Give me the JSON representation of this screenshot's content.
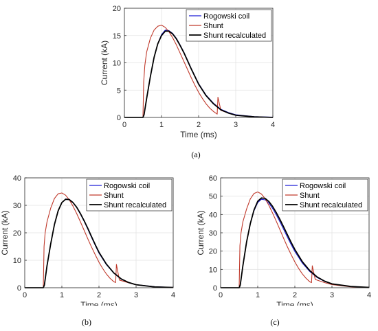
{
  "chart_data": [
    {
      "type": "line",
      "panel_label": "(a)",
      "xlabel": "Time (ms)",
      "ylabel": "Current (kA)",
      "xlim": [
        0,
        4
      ],
      "ylim": [
        0,
        20
      ],
      "xticks": [
        0,
        1,
        2,
        3,
        4
      ],
      "yticks": [
        0,
        5,
        10,
        15,
        20
      ],
      "grid": true,
      "legend_position": "top-right",
      "colors": {
        "Rogowski coil": "#1f1fd6",
        "Shunt": "#c0392b",
        "Shunt recalculated": "#000000"
      },
      "series": [
        {
          "name": "Rogowski coil",
          "color": "#1f1fd6",
          "x": [
            0,
            0.5,
            0.53,
            0.6,
            0.7,
            0.8,
            0.9,
            1.0,
            1.1,
            1.2,
            1.3,
            1.4,
            1.5,
            1.6,
            1.7,
            1.8,
            1.9,
            2.0,
            2.2,
            2.4,
            2.6,
            2.8,
            3.0,
            3.5,
            4.0
          ],
          "y": [
            0,
            0,
            0.5,
            3.5,
            7.5,
            11,
            13.5,
            15.2,
            16.0,
            15.9,
            15.4,
            14.5,
            13.3,
            12.0,
            10.5,
            9.0,
            7.6,
            6.2,
            4.1,
            2.6,
            1.5,
            0.9,
            0.5,
            0.15,
            0.05
          ]
        },
        {
          "name": "Shunt",
          "color": "#c0392b",
          "x": [
            0,
            0.5,
            0.52,
            0.55,
            0.6,
            0.7,
            0.8,
            0.9,
            1.0,
            1.1,
            1.2,
            1.3,
            1.4,
            1.5,
            1.6,
            1.7,
            1.8,
            1.9,
            2.0,
            2.1,
            2.2,
            2.3,
            2.4,
            2.5,
            2.52,
            2.6,
            2.8,
            3.0,
            3.5,
            4.0
          ],
          "y": [
            0,
            0,
            6.5,
            9.5,
            12.0,
            14.5,
            16.0,
            16.7,
            16.9,
            16.5,
            15.7,
            14.6,
            13.3,
            11.8,
            10.3,
            8.8,
            7.3,
            5.9,
            4.6,
            3.5,
            2.5,
            1.7,
            1.1,
            0.6,
            3.7,
            1.3,
            0.8,
            0.4,
            0.1,
            0.0
          ]
        },
        {
          "name": "Shunt recalculated",
          "color": "#000000",
          "x": [
            0,
            0.5,
            0.53,
            0.6,
            0.7,
            0.8,
            0.9,
            1.0,
            1.1,
            1.2,
            1.3,
            1.4,
            1.5,
            1.6,
            1.7,
            1.8,
            1.9,
            2.0,
            2.2,
            2.4,
            2.6,
            2.8,
            3.0,
            3.5,
            4.0
          ],
          "y": [
            0,
            0,
            0.5,
            3.5,
            7.5,
            11,
            13.5,
            15.0,
            15.8,
            15.8,
            15.3,
            14.4,
            13.2,
            11.9,
            10.4,
            8.9,
            7.5,
            6.1,
            4.0,
            2.5,
            1.4,
            0.8,
            0.4,
            0.1,
            0.0
          ]
        }
      ]
    },
    {
      "type": "line",
      "panel_label": "(b)",
      "xlabel": "Time (ms)",
      "ylabel": "Current (kA)",
      "xlim": [
        0,
        4
      ],
      "ylim": [
        0,
        40
      ],
      "xticks": [
        0,
        1,
        2,
        3,
        4
      ],
      "yticks": [
        0,
        10,
        20,
        30,
        40
      ],
      "grid": true,
      "legend_position": "top-right",
      "colors": {
        "Rogowski coil": "#1f1fd6",
        "Shunt": "#c0392b",
        "Shunt recalculated": "#000000"
      },
      "series": [
        {
          "name": "Rogowski coil",
          "color": "#1f1fd6",
          "x": [
            0,
            0.5,
            0.53,
            0.6,
            0.7,
            0.8,
            0.9,
            1.0,
            1.1,
            1.2,
            1.3,
            1.4,
            1.5,
            1.6,
            1.7,
            1.8,
            1.9,
            2.0,
            2.2,
            2.4,
            2.6,
            2.8,
            3.0,
            3.5,
            4.0
          ],
          "y": [
            0,
            0,
            1,
            8,
            16,
            23,
            28,
            31,
            32.3,
            32.2,
            31.0,
            29.2,
            26.8,
            24.2,
            21.3,
            18.3,
            15.4,
            12.6,
            8.4,
            5.3,
            3.1,
            1.9,
            1.1,
            0.4,
            0.1
          ]
        },
        {
          "name": "Shunt",
          "color": "#c0392b",
          "x": [
            0,
            0.5,
            0.52,
            0.55,
            0.6,
            0.7,
            0.8,
            0.9,
            1.0,
            1.1,
            1.2,
            1.3,
            1.4,
            1.5,
            1.6,
            1.7,
            1.8,
            1.9,
            2.0,
            2.1,
            2.2,
            2.3,
            2.4,
            2.45,
            2.47,
            2.55,
            2.8,
            3.0,
            3.5,
            4.0
          ],
          "y": [
            0,
            0,
            15,
            20,
            24,
            29,
            32.5,
            34.2,
            34.5,
            33.7,
            32.0,
            29.7,
            27.0,
            24.0,
            20.9,
            17.8,
            14.8,
            12.0,
            9.3,
            7.0,
            5.0,
            3.4,
            2.2,
            1.9,
            8.5,
            2.8,
            1.8,
            1.1,
            0.3,
            0.1
          ]
        },
        {
          "name": "Shunt recalculated",
          "color": "#000000",
          "x": [
            0,
            0.5,
            0.53,
            0.6,
            0.7,
            0.8,
            0.9,
            1.0,
            1.1,
            1.2,
            1.3,
            1.4,
            1.5,
            1.6,
            1.7,
            1.8,
            1.9,
            2.0,
            2.2,
            2.4,
            2.6,
            2.8,
            3.0,
            3.5,
            4.0
          ],
          "y": [
            0,
            0,
            1,
            8,
            16,
            23,
            28,
            31,
            32.2,
            32.1,
            31.0,
            29.3,
            27.0,
            24.4,
            21.6,
            18.6,
            15.7,
            12.9,
            8.6,
            5.4,
            3.2,
            1.9,
            1.1,
            0.3,
            0.1
          ]
        }
      ]
    },
    {
      "type": "line",
      "panel_label": "(c)",
      "xlabel": "Time (ms)",
      "ylabel": "Current (kA)",
      "xlim": [
        0,
        4
      ],
      "ylim": [
        0,
        60
      ],
      "xticks": [
        0,
        1,
        2,
        3,
        4
      ],
      "yticks": [
        0,
        10,
        20,
        30,
        40,
        50,
        60
      ],
      "grid": true,
      "legend_position": "top-right",
      "colors": {
        "Rogowski coil": "#1f1fd6",
        "Shunt": "#c0392b",
        "Shunt recalculated": "#000000"
      },
      "series": [
        {
          "name": "Rogowski coil",
          "color": "#1f1fd6",
          "x": [
            0,
            0.5,
            0.53,
            0.6,
            0.7,
            0.8,
            0.9,
            1.0,
            1.1,
            1.2,
            1.3,
            1.4,
            1.5,
            1.6,
            1.7,
            1.8,
            1.9,
            2.0,
            2.2,
            2.4,
            2.6,
            2.8,
            3.0,
            3.5,
            4.0
          ],
          "y": [
            0,
            0,
            1.5,
            12,
            25,
            35,
            42,
            46.5,
            48.3,
            48.0,
            46.2,
            43.3,
            39.8,
            35.9,
            31.8,
            27.6,
            23.6,
            19.8,
            13.5,
            8.9,
            5.6,
            3.5,
            2.1,
            0.7,
            0.2
          ]
        },
        {
          "name": "Shunt",
          "color": "#c0392b",
          "x": [
            0,
            0.5,
            0.52,
            0.55,
            0.6,
            0.7,
            0.8,
            0.9,
            1.0,
            1.1,
            1.2,
            1.3,
            1.4,
            1.5,
            1.6,
            1.7,
            1.8,
            1.9,
            2.0,
            2.1,
            2.2,
            2.3,
            2.4,
            2.45,
            2.47,
            2.55,
            2.8,
            3.0,
            3.5,
            4.0
          ],
          "y": [
            0,
            0,
            23,
            30,
            36,
            43,
            48.5,
            51.5,
            52.3,
            51.2,
            48.6,
            45.0,
            40.8,
            36.3,
            31.6,
            26.9,
            22.3,
            18.1,
            14.1,
            10.6,
            7.6,
            5.2,
            3.3,
            2.8,
            12,
            4.5,
            2.8,
            1.7,
            0.5,
            0.1
          ]
        },
        {
          "name": "Shunt recalculated",
          "color": "#000000",
          "x": [
            0,
            0.5,
            0.53,
            0.6,
            0.7,
            0.8,
            0.9,
            1.0,
            1.1,
            1.2,
            1.3,
            1.4,
            1.5,
            1.6,
            1.7,
            1.8,
            1.9,
            2.0,
            2.2,
            2.4,
            2.6,
            2.8,
            3.0,
            3.5,
            4.0
          ],
          "y": [
            0,
            0,
            1.5,
            12,
            25,
            35,
            42.5,
            47.2,
            49.0,
            48.8,
            47.1,
            44.4,
            41.0,
            37.2,
            33.1,
            28.9,
            24.8,
            20.9,
            14.3,
            9.4,
            5.9,
            3.6,
            2.1,
            0.7,
            0.2
          ]
        }
      ]
    }
  ]
}
